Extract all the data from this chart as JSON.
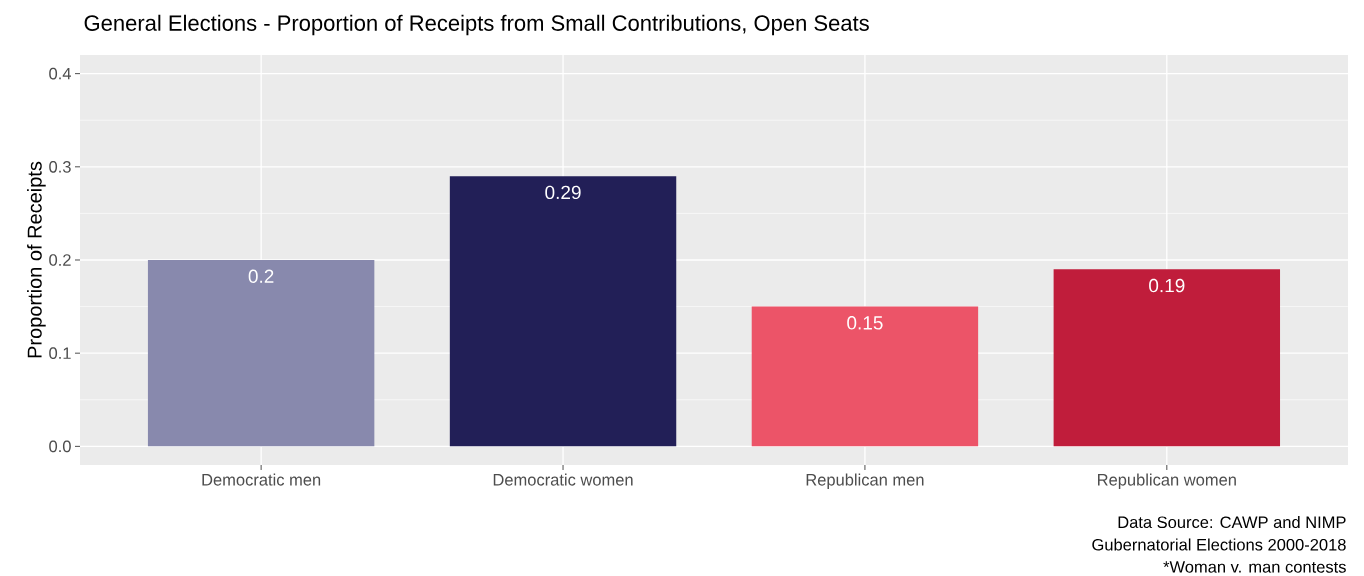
{
  "chart_data": {
    "type": "bar",
    "title": "General Elections - Proportion of Receipts from Small Contributions, Open Seats",
    "ylabel": "Proportion of Receipts",
    "categories": [
      "Democratic men",
      "Democratic women",
      "Republican men",
      "Republican women"
    ],
    "values": [
      0.2,
      0.29,
      0.15,
      0.19
    ],
    "colors": [
      "#8889ad",
      "#221f57",
      "#ec5468",
      "#c01d3b"
    ],
    "data_labels": true,
    "ylim": [
      -0.02,
      0.42
    ],
    "yticks": [
      {
        "value": 0,
        "label": "0.0"
      },
      0.1,
      0.2,
      0.3,
      0.4
    ],
    "grid": true,
    "annotations": [
      "Data Source: CAWP and NIMP",
      "Gubernatorial Elections 2000-2018",
      "*Woman v. man contests"
    ]
  }
}
